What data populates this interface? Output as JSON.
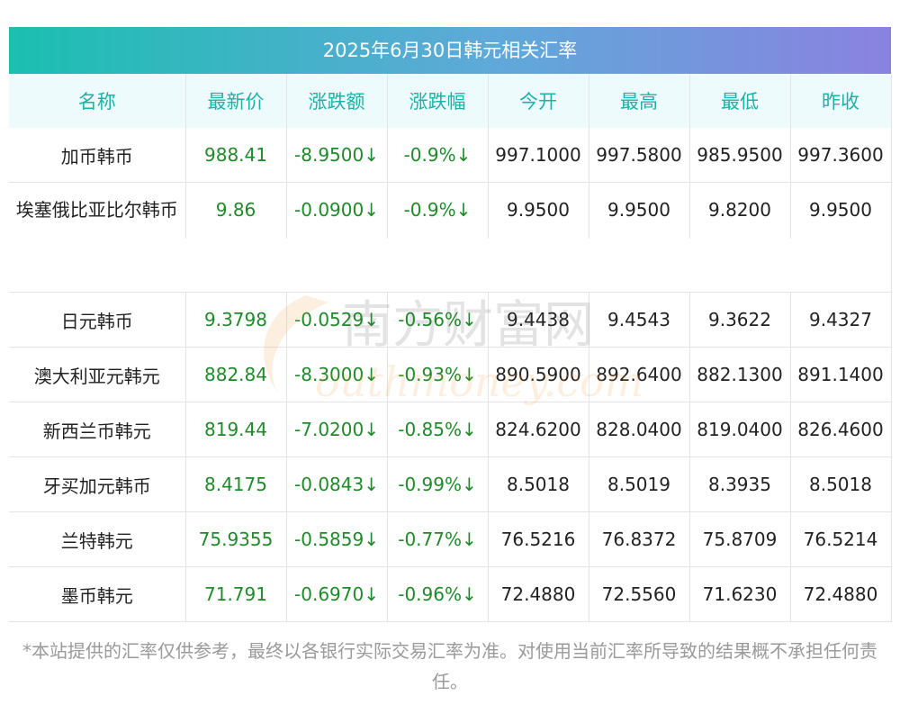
{
  "title": "2025年6月30日韩元相关汇率",
  "headers": [
    "名称",
    "最新价",
    "涨跌额",
    "涨跌幅",
    "今开",
    "最高",
    "最低",
    "昨收"
  ],
  "rows": [
    {
      "name": "加币韩币",
      "latest": "988.41",
      "change": "-8.9500↓",
      "pct": "-0.9%↓",
      "open": "997.1000",
      "high": "997.5800",
      "low": "985.9500",
      "prev": "997.3600"
    },
    {
      "name": "埃塞俄比亚比尔韩币",
      "latest": "9.86",
      "change": "-0.0900↓",
      "pct": "-0.9%↓",
      "open": "9.9500",
      "high": "9.9500",
      "low": "9.8200",
      "prev": "9.9500"
    },
    {
      "name": "日元韩币",
      "latest": "9.3798",
      "change": "-0.0529↓",
      "pct": "-0.56%↓",
      "open": "9.4438",
      "high": "9.4543",
      "low": "9.3622",
      "prev": "9.4327"
    },
    {
      "name": "澳大利亚元韩元",
      "latest": "882.84",
      "change": "-8.3000↓",
      "pct": "-0.93%↓",
      "open": "890.5900",
      "high": "892.6400",
      "low": "882.1300",
      "prev": "891.1400"
    },
    {
      "name": "新西兰币韩元",
      "latest": "819.44",
      "change": "-7.0200↓",
      "pct": "-0.85%↓",
      "open": "824.6200",
      "high": "828.0400",
      "low": "819.0400",
      "prev": "826.4600"
    },
    {
      "name": "牙买加元韩币",
      "latest": "8.4175",
      "change": "-0.0843↓",
      "pct": "-0.99%↓",
      "open": "8.5018",
      "high": "8.5019",
      "low": "8.3935",
      "prev": "8.5018"
    },
    {
      "name": "兰特韩元",
      "latest": "75.9355",
      "change": "-0.5859↓",
      "pct": "-0.77%↓",
      "open": "76.5216",
      "high": "76.8372",
      "low": "75.8709",
      "prev": "76.5214"
    },
    {
      "name": "墨币韩元",
      "latest": "71.791",
      "change": "-0.6970↓",
      "pct": "-0.96%↓",
      "open": "72.4880",
      "high": "72.5560",
      "low": "71.6230",
      "prev": "72.4880"
    }
  ],
  "watermark": {
    "cn": "南方财富网",
    "en": "outhmoney.com"
  },
  "footnote": "*本站提供的汇率仅供参考，最终以各银行实际交易汇率为准。对使用当前汇率所导致的结果概不承担任何责任。",
  "colors": {
    "header_text": "#1fb1a8",
    "header_bg": "#edfbfc",
    "up_down_green": "#1f8a2a",
    "gradient_start": "#1bbfb0",
    "gradient_end": "#8a82e0"
  }
}
